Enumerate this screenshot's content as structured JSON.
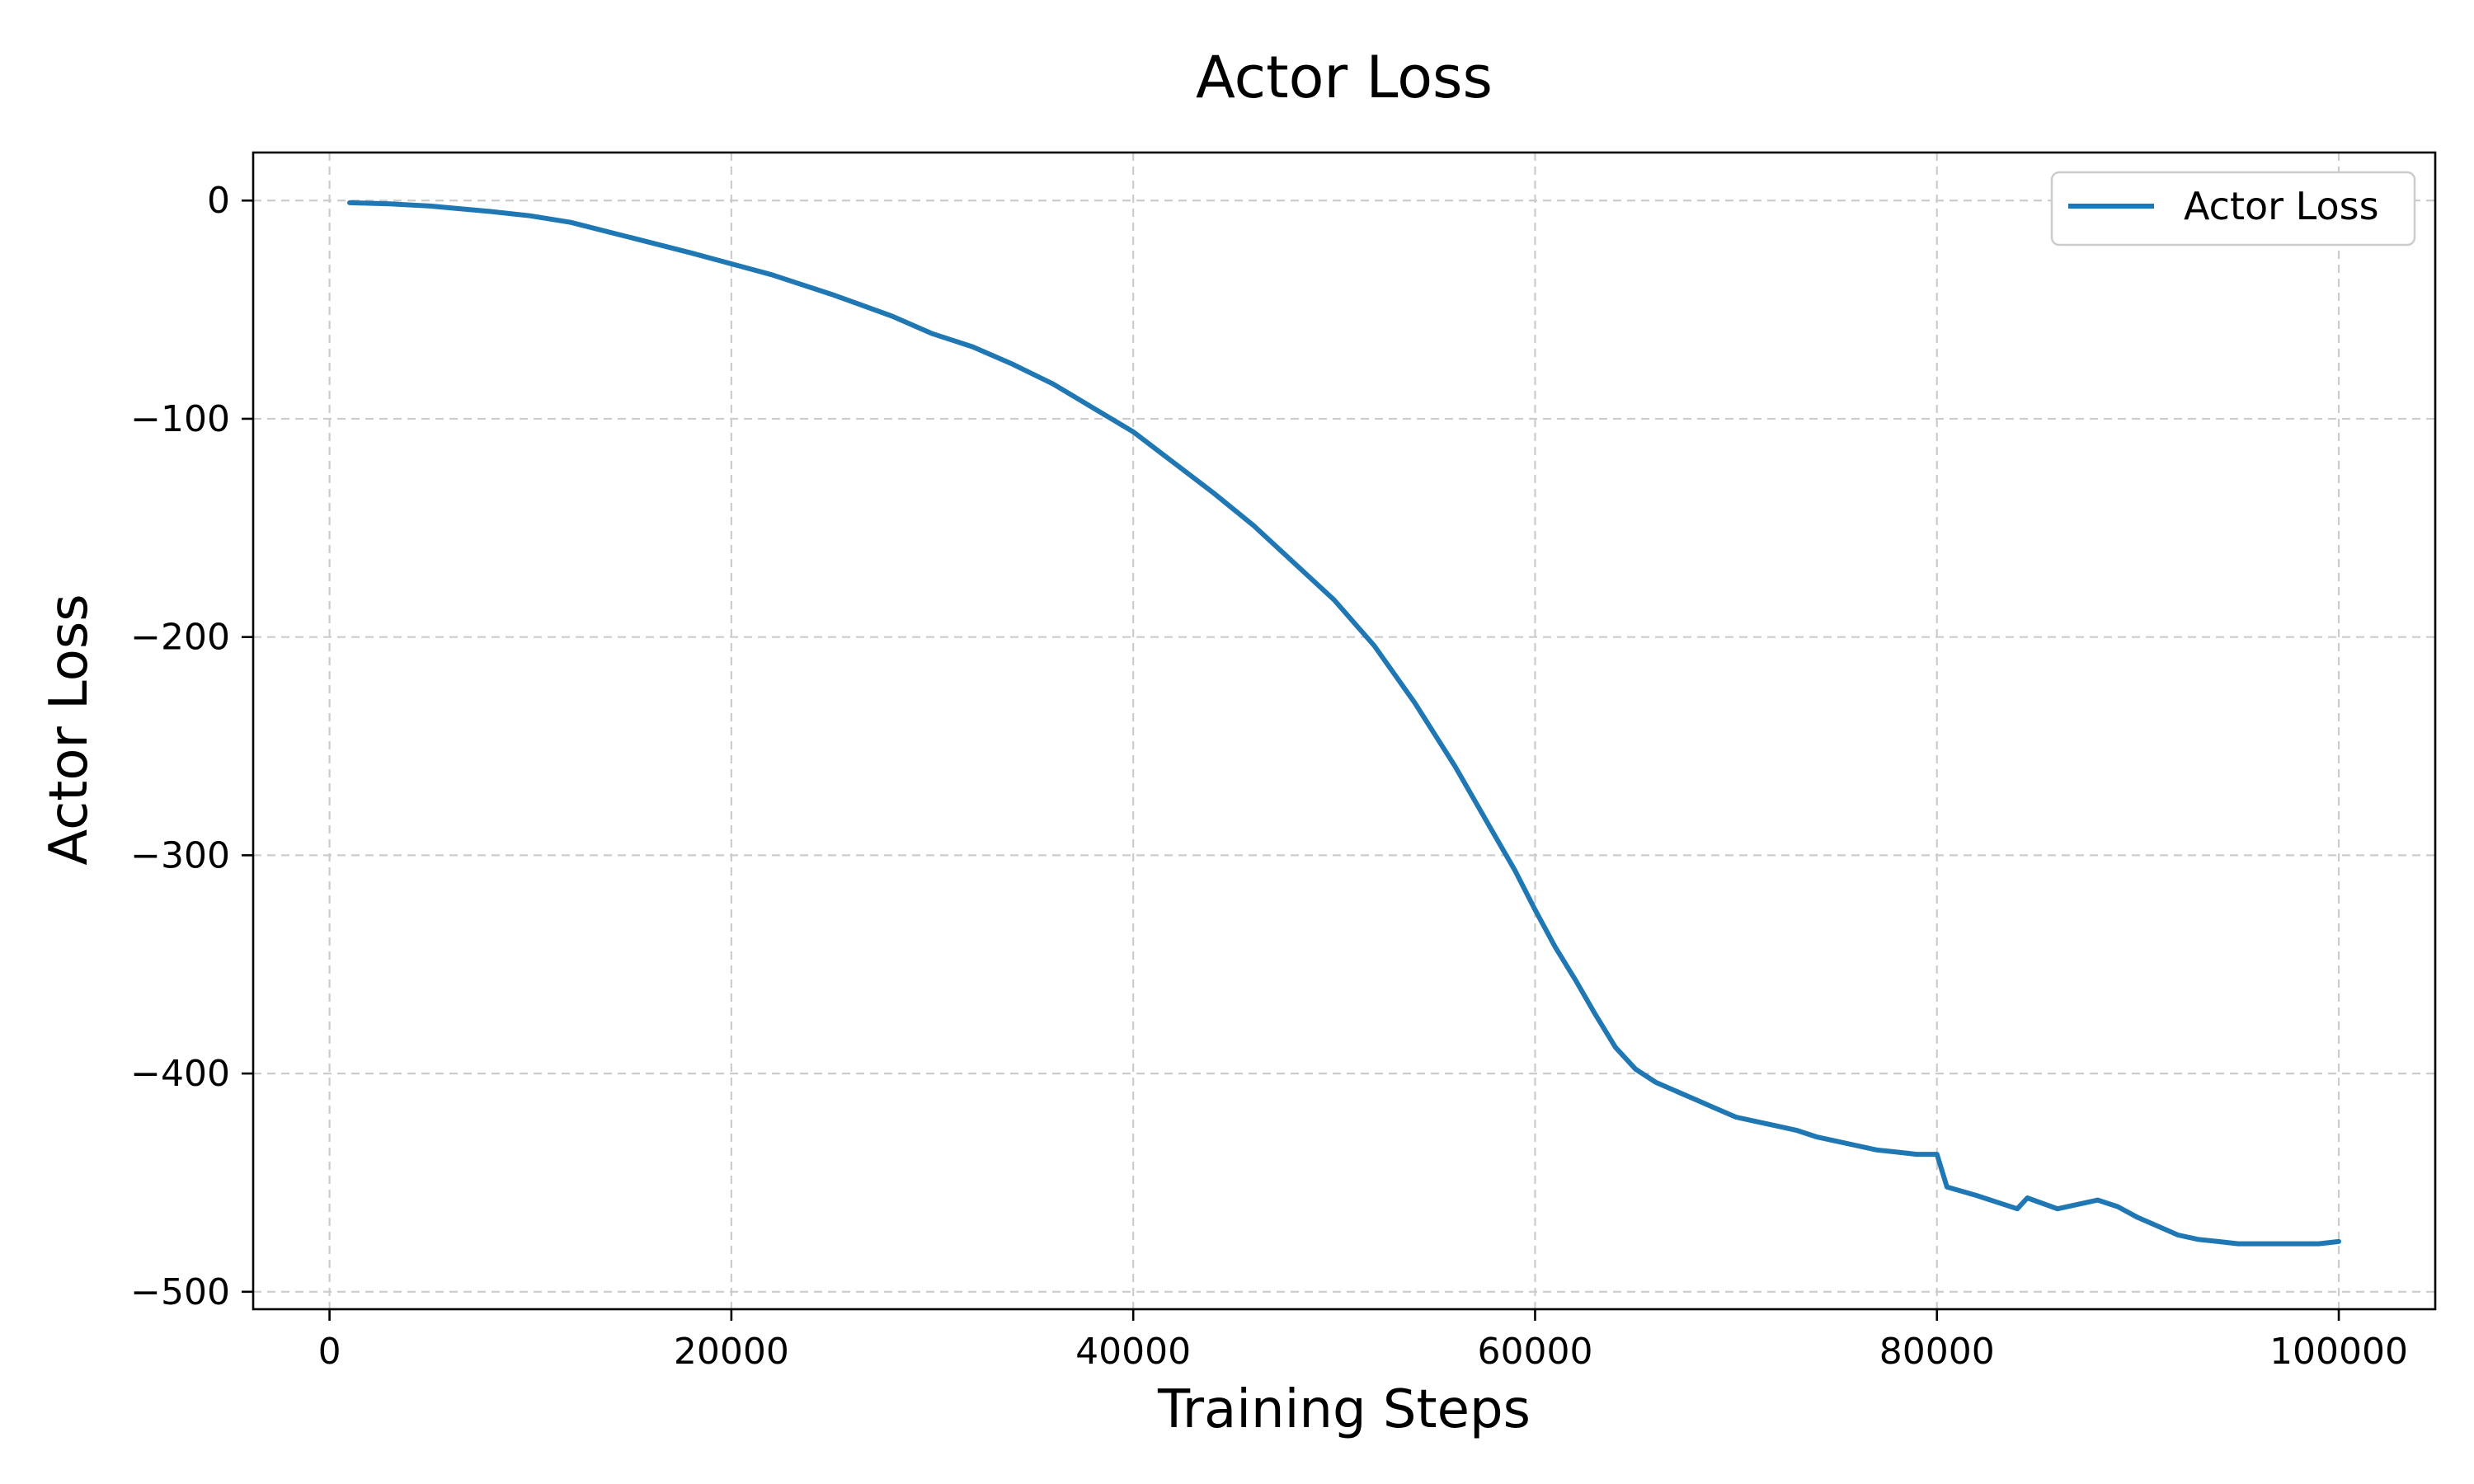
{
  "chart_data": {
    "type": "line",
    "title": "Actor Loss",
    "xlabel": "Training Steps",
    "ylabel": "Actor Loss",
    "xlim": [
      -3800,
      104800
    ],
    "ylim": [
      -508,
      22
    ],
    "xticks": [
      0,
      20000,
      40000,
      60000,
      80000,
      100000
    ],
    "yticks": [
      0,
      -100,
      -200,
      -300,
      -400,
      -500
    ],
    "ytick_labels": [
      "0",
      "−100",
      "−200",
      "−300",
      "−400",
      "−500"
    ],
    "grid": true,
    "legend_position": "top-right",
    "colors": {
      "series": "#1f77b4",
      "grid": "#cccccc"
    },
    "series": [
      {
        "name": "Actor Loss",
        "x": [
          1000,
          3000,
          5000,
          8000,
          10000,
          12000,
          15000,
          18000,
          20000,
          22000,
          25000,
          28000,
          30000,
          32000,
          34000,
          36000,
          38000,
          40000,
          42000,
          44000,
          46000,
          48000,
          50000,
          52000,
          54000,
          56000,
          57000,
          58000,
          59000,
          60000,
          61000,
          62000,
          63000,
          64000,
          65000,
          66000,
          67000,
          68000,
          69000,
          70000,
          71000,
          72000,
          73000,
          74000,
          75000,
          76000,
          77000,
          78000,
          79000,
          80000,
          80500,
          82000,
          84000,
          84500,
          86000,
          88000,
          89000,
          90000,
          91000,
          92000,
          93000,
          94000,
          95000,
          96000,
          97000,
          98000,
          99000,
          100000
        ],
        "y": [
          -1,
          -1.5,
          -2.5,
          -5,
          -7,
          -10,
          -17,
          -24,
          -29,
          -34,
          -43,
          -53,
          -61,
          -67,
          -75,
          -84,
          -95,
          -106,
          -120,
          -134,
          -149,
          -166,
          -183,
          -204,
          -230,
          -259,
          -275,
          -291,
          -307,
          -325,
          -342,
          -357,
          -373,
          -388,
          -398,
          -404,
          -408,
          -412,
          -416,
          -420,
          -422,
          -424,
          -426,
          -429,
          -431,
          -433,
          -435,
          -436,
          -437,
          -437,
          -452,
          -456,
          -462,
          -457,
          -462,
          -458,
          -461,
          -466,
          -470,
          -474,
          -476,
          -477,
          -478,
          -478,
          -478,
          -478,
          -478,
          -477
        ]
      }
    ]
  }
}
